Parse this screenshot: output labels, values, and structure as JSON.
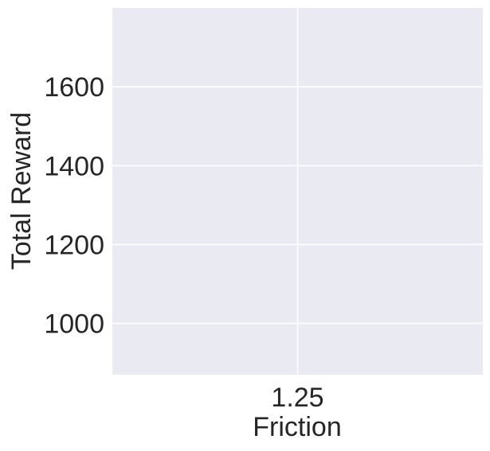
{
  "chart_data": {
    "type": "line",
    "title": "",
    "xlabel": "Friction",
    "ylabel": "Total Reward",
    "x_ticks": [
      1.25
    ],
    "x_tick_labels": [
      "1.25"
    ],
    "y_ticks": [
      1000,
      1200,
      1400,
      1600
    ],
    "y_tick_labels": [
      "1000",
      "1200",
      "1400",
      "1600"
    ],
    "xlim": [
      1.0,
      1.5
    ],
    "ylim": [
      870,
      1800
    ],
    "grid": true,
    "legend": "none",
    "series": [],
    "colors": {
      "plot_background": "#eaeaf2",
      "grid": "#ffffff",
      "text": "#262626"
    }
  }
}
